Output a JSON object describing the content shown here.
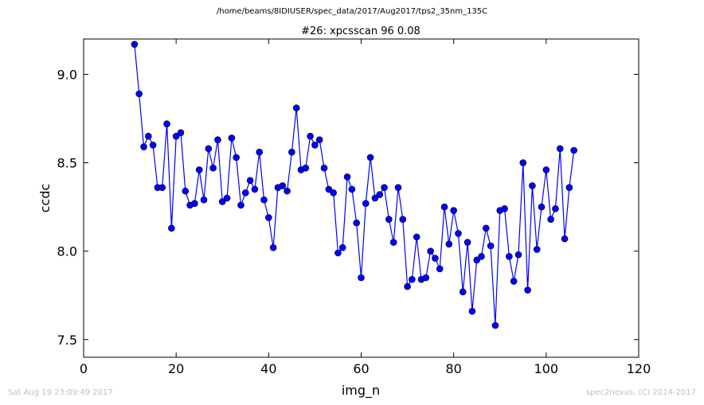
{
  "figure": {
    "suptitle": "/home/beams/8IDIUSER/spec_data/2017/Aug2017/tps2_35nm_135C",
    "footer_left": "Sat Aug 19 23:09:49 2017",
    "footer_right": "spec2nexus, (C) 2014-2017"
  },
  "chart_data": {
    "type": "line",
    "title": "#26: xpcsscan 96 0.08",
    "xlabel": "img_n",
    "ylabel": "ccdc",
    "xlim": [
      0,
      120
    ],
    "ylim": [
      7.4,
      9.2
    ],
    "xticks": [
      0,
      20,
      40,
      60,
      80,
      100,
      120
    ],
    "yticks": [
      7.5,
      8.0,
      8.5,
      9.0
    ],
    "xtick_labels": [
      "0",
      "20",
      "40",
      "60",
      "80",
      "100",
      "120"
    ],
    "ytick_labels": [
      "7.5",
      "8.0",
      "8.5",
      "9.0"
    ],
    "grid": false,
    "line_color": "#0000ff",
    "marker_color": "#0000ff",
    "marker": "circle",
    "series": [
      {
        "x": [
          11,
          12,
          13,
          14,
          15,
          16,
          17,
          18,
          19,
          20,
          21,
          22,
          23,
          24,
          25,
          26,
          27,
          28,
          29,
          30,
          31,
          32,
          33,
          34,
          35,
          36,
          37,
          38,
          39,
          40,
          41,
          42,
          43,
          44,
          45,
          46,
          47,
          48,
          49,
          50,
          51,
          52,
          53,
          54,
          55,
          56,
          57,
          58,
          59,
          60,
          61,
          62,
          63,
          64,
          65,
          66,
          67,
          68,
          69,
          70,
          71,
          72,
          73,
          74,
          75,
          76,
          77,
          78,
          79,
          80,
          81,
          82,
          83,
          84,
          85,
          86,
          87,
          88,
          89,
          90,
          91,
          92,
          93,
          94,
          95,
          96,
          97,
          98,
          99,
          100,
          101,
          102,
          103,
          104,
          105,
          106
        ],
        "values": [
          9.17,
          8.89,
          8.59,
          8.65,
          8.6,
          8.36,
          8.36,
          8.72,
          8.13,
          8.65,
          8.67,
          8.34,
          8.26,
          8.27,
          8.46,
          8.29,
          8.58,
          8.47,
          8.63,
          8.28,
          8.3,
          8.64,
          8.53,
          8.26,
          8.33,
          8.4,
          8.35,
          8.56,
          8.29,
          8.19,
          8.02,
          8.36,
          8.37,
          8.34,
          8.56,
          8.81,
          8.46,
          8.47,
          8.65,
          8.6,
          8.63,
          8.47,
          8.35,
          8.33,
          7.99,
          8.02,
          8.42,
          8.35,
          8.16,
          7.85,
          8.27,
          8.53,
          8.3,
          8.32,
          8.36,
          8.18,
          8.05,
          8.36,
          8.18,
          7.8,
          7.84,
          8.08,
          7.84,
          7.85,
          8.0,
          7.96,
          7.9,
          8.25,
          8.04,
          8.23,
          8.1,
          7.77,
          8.05,
          7.66,
          7.95,
          7.97,
          8.13,
          8.03,
          7.58,
          8.23,
          8.24,
          7.97,
          7.83,
          7.98,
          8.5,
          7.78,
          8.37,
          8.01,
          8.25,
          8.46,
          8.18,
          8.24,
          8.58,
          8.07,
          8.36,
          8.57
        ]
      }
    ]
  }
}
